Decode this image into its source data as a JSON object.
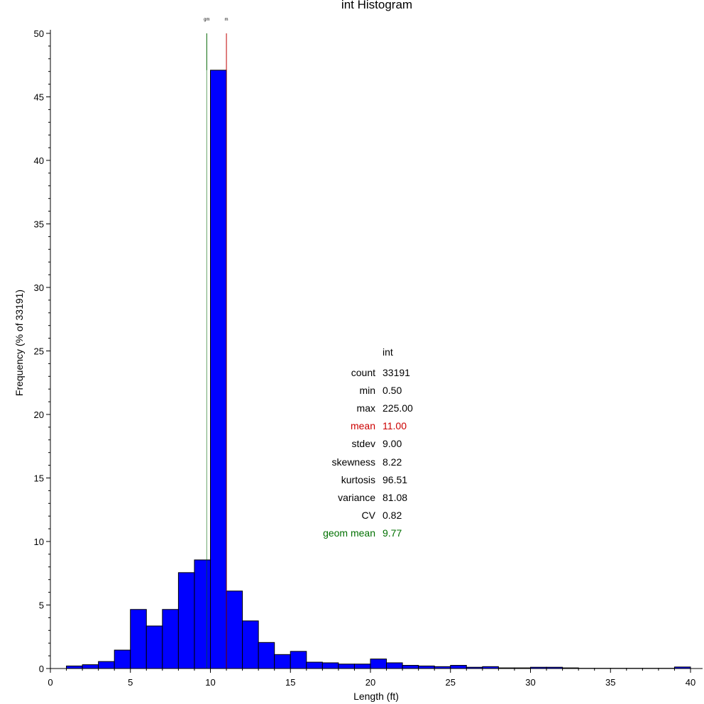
{
  "chart_data": {
    "type": "bar",
    "title": "int Histogram",
    "xlabel": "Length (ft)",
    "ylabel": "Frequency (% of 33191)",
    "xlim": [
      0,
      40
    ],
    "ylim": [
      0,
      50
    ],
    "x_ticks": [
      "0",
      "5",
      "10",
      "15",
      "20",
      "25",
      "30",
      "35",
      "40"
    ],
    "y_ticks": [
      "0",
      "5",
      "10",
      "15",
      "20",
      "25",
      "30",
      "35",
      "40",
      "45",
      "50"
    ],
    "bin_width": 1,
    "bins_start": [
      1,
      2,
      3,
      4,
      5,
      6,
      7,
      8,
      9,
      10,
      11,
      12,
      13,
      14,
      15,
      16,
      17,
      18,
      19,
      20,
      21,
      22,
      23,
      24,
      25,
      26,
      27,
      28,
      29,
      30,
      31,
      32,
      33,
      34,
      35,
      36,
      37,
      38,
      39
    ],
    "values": [
      0.2,
      0.3,
      0.55,
      1.45,
      4.65,
      3.35,
      4.65,
      7.55,
      8.55,
      47.1,
      6.1,
      3.75,
      2.05,
      1.1,
      1.35,
      0.5,
      0.45,
      0.35,
      0.35,
      0.75,
      0.45,
      0.25,
      0.2,
      0.15,
      0.25,
      0.1,
      0.15,
      0.05,
      0.05,
      0.1,
      0.1,
      0.05,
      0.02,
      0.02,
      0.02,
      0.02,
      0.02,
      0.02,
      0.12
    ],
    "reference_lines": [
      {
        "label": "gm",
        "x": 9.77,
        "color": "#006400"
      },
      {
        "label": "m",
        "x": 11.0,
        "color": "#c00000"
      }
    ],
    "bar_color": "#0000ff",
    "grid": false
  },
  "stats": {
    "header": "int",
    "rows": [
      {
        "label": "count",
        "value": "33191",
        "color": "#000000"
      },
      {
        "label": "min",
        "value": "0.50",
        "color": "#000000"
      },
      {
        "label": "max",
        "value": "225.00",
        "color": "#000000"
      },
      {
        "label": "mean",
        "value": "11.00",
        "color": "#cc0000"
      },
      {
        "label": "stdev",
        "value": "9.00",
        "color": "#000000"
      },
      {
        "label": "skewness",
        "value": "8.22",
        "color": "#000000"
      },
      {
        "label": "kurtosis",
        "value": "96.51",
        "color": "#000000"
      },
      {
        "label": "variance",
        "value": "81.08",
        "color": "#000000"
      },
      {
        "label": "CV",
        "value": "0.82",
        "color": "#000000"
      },
      {
        "label": "geom mean",
        "value": "9.77",
        "color": "#007000"
      }
    ]
  }
}
